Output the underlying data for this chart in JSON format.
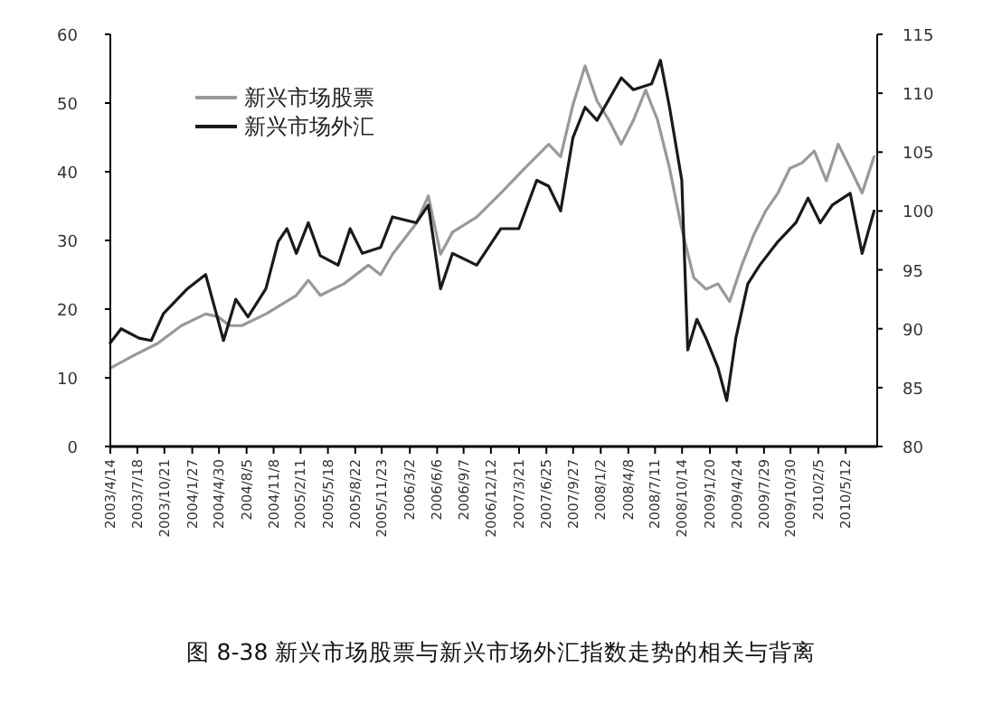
{
  "chart_data": {
    "type": "line",
    "title": "图 8-38   新兴市场股票与新兴市场外汇指数走势的相关与背离",
    "xlim": [
      "2003-04-14",
      "2010-08-31"
    ],
    "xticks": [
      {
        "value": "2003-04-14",
        "label": "2003/4/14"
      },
      {
        "value": "2003-07-18",
        "label": "2003/7/18"
      },
      {
        "value": "2003-10-21",
        "label": "2003/10/21"
      },
      {
        "value": "2004-01-27",
        "label": "2004/1/27"
      },
      {
        "value": "2004-04-30",
        "label": "2004/4/30"
      },
      {
        "value": "2004-08-05",
        "label": "2004/8/5"
      },
      {
        "value": "2004-11-08",
        "label": "2004/11/8"
      },
      {
        "value": "2005-02-11",
        "label": "2005/2/11"
      },
      {
        "value": "2005-05-18",
        "label": "2005/5/18"
      },
      {
        "value": "2005-08-22",
        "label": "2005/8/22"
      },
      {
        "value": "2005-11-23",
        "label": "2005/11/23"
      },
      {
        "value": "2006-03-02",
        "label": "2006/3/2"
      },
      {
        "value": "2006-06-06",
        "label": "2006/6/6"
      },
      {
        "value": "2006-09-07",
        "label": "2006/9/7"
      },
      {
        "value": "2006-12-12",
        "label": "2006/12/12"
      },
      {
        "value": "2007-03-21",
        "label": "2007/3/21"
      },
      {
        "value": "2007-06-25",
        "label": "2007/6/25"
      },
      {
        "value": "2007-09-27",
        "label": "2007/9/27"
      },
      {
        "value": "2008-01-02",
        "label": "2008/1/2"
      },
      {
        "value": "2008-04-08",
        "label": "2008/4/8"
      },
      {
        "value": "2008-07-11",
        "label": "2008/7/11"
      },
      {
        "value": "2008-10-14",
        "label": "2008/10/14"
      },
      {
        "value": "2009-01-20",
        "label": "2009/1/20"
      },
      {
        "value": "2009-04-24",
        "label": "2009/4/24"
      },
      {
        "value": "2009-07-29",
        "label": "2009/7/29"
      },
      {
        "value": "2009-10-30",
        "label": "2009/10/30"
      },
      {
        "value": "2010-02-05",
        "label": "2010/2/5"
      },
      {
        "value": "2010-05-12",
        "label": "2010/5/12"
      }
    ],
    "ylim": [
      0,
      60
    ],
    "yticks": [
      0,
      10,
      20,
      30,
      40,
      50,
      60
    ],
    "y2lim": [
      80,
      115
    ],
    "y2ticks": [
      80,
      85,
      90,
      95,
      100,
      105,
      110,
      115
    ],
    "grid": false,
    "legend": "top left",
    "line_style": "solid",
    "series": [
      {
        "name": "新兴市场股票",
        "color": "#999999",
        "x": [
          "2003-04-14",
          "2003-07-03",
          "2003-09-27",
          "2003-12-20",
          "2004-03-14",
          "2004-04-26",
          "2004-06-07",
          "2004-07-19",
          "2004-10-12",
          "2005-01-27",
          "2005-03-10",
          "2005-04-21",
          "2005-07-14",
          "2005-10-07",
          "2005-11-19",
          "2005-12-31",
          "2006-03-25",
          "2006-05-06",
          "2006-06-18",
          "2006-07-30",
          "2006-10-23",
          "2007-01-16",
          "2007-04-10",
          "2007-07-03",
          "2007-08-14",
          "2007-09-26",
          "2007-11-08",
          "2007-12-20",
          "2008-01-31",
          "2008-03-14",
          "2008-04-26",
          "2008-06-08",
          "2008-07-20",
          "2008-08-31",
          "2008-10-13",
          "2008-11-24",
          "2009-01-06",
          "2009-02-17",
          "2009-03-30",
          "2009-05-12",
          "2009-06-23",
          "2009-08-04",
          "2009-09-16",
          "2009-10-28",
          "2009-12-10",
          "2010-01-22",
          "2010-03-05",
          "2010-04-16",
          "2010-05-28",
          "2010-07-09",
          "2010-08-20"
        ],
        "values": [
          11.4,
          13.2,
          15,
          17.6,
          19.3,
          18.9,
          17.6,
          17.6,
          19.3,
          22,
          24.2,
          22,
          23.7,
          26.4,
          25,
          28,
          32.5,
          36.5,
          28,
          31.2,
          33.4,
          36.9,
          40.5,
          44,
          42.2,
          49.7,
          55.4,
          50.3,
          47.5,
          44,
          47.5,
          51.9,
          47.5,
          40.5,
          31.7,
          24.6,
          22.9,
          23.7,
          21.1,
          26.4,
          30.8,
          34.3,
          36.9,
          40.5,
          41.3,
          43,
          38.7,
          44,
          40.5,
          36.9,
          42.2
        ]
      },
      {
        "name": "新兴市场外汇",
        "color": "#1a1a1a",
        "axis": "y2",
        "x": [
          "2003-04-14",
          "2003-05-22",
          "2003-07-24",
          "2003-09-05",
          "2003-10-18",
          "2004-01-10",
          "2004-03-14",
          "2004-04-26",
          "2004-05-16",
          "2004-06-28",
          "2004-08-10",
          "2004-10-12",
          "2004-11-24",
          "2004-12-25",
          "2005-01-27",
          "2005-03-10",
          "2005-04-21",
          "2005-06-23",
          "2005-08-04",
          "2005-09-16",
          "2005-11-19",
          "2005-12-31",
          "2006-03-25",
          "2006-05-06",
          "2006-06-18",
          "2006-07-30",
          "2006-10-23",
          "2007-01-16",
          "2007-03-20",
          "2007-05-22",
          "2007-07-03",
          "2007-08-14",
          "2007-09-26",
          "2007-11-08",
          "2007-12-20",
          "2008-03-14",
          "2008-04-26",
          "2008-06-29",
          "2008-07-30",
          "2008-08-31",
          "2008-10-13",
          "2008-11-03",
          "2008-12-05",
          "2009-01-06",
          "2009-02-17",
          "2009-03-20",
          "2009-04-21",
          "2009-06-02",
          "2009-07-14",
          "2009-09-16",
          "2009-11-18",
          "2009-12-31",
          "2010-02-12",
          "2010-03-26",
          "2010-05-28",
          "2010-07-09",
          "2010-08-20"
        ],
        "values": [
          88.8,
          90.0,
          89.2,
          89.0,
          91.3,
          93.4,
          94.6,
          90.8,
          89.0,
          92.5,
          91.0,
          93.4,
          97.4,
          98.5,
          96.4,
          99.0,
          96.2,
          95.4,
          98.5,
          96.4,
          96.9,
          99.5,
          99.0,
          100.5,
          93.4,
          96.4,
          95.4,
          98.5,
          98.5,
          102.6,
          102.1,
          100.0,
          106.2,
          108.8,
          107.7,
          111.3,
          110.3,
          110.8,
          112.8,
          108.8,
          102.6,
          88.2,
          90.8,
          89.2,
          86.7,
          83.9,
          89.2,
          93.8,
          95.4,
          97.4,
          99.0,
          101.1,
          99.0,
          100.5,
          101.5,
          96.4,
          100.0
        ]
      }
    ]
  }
}
